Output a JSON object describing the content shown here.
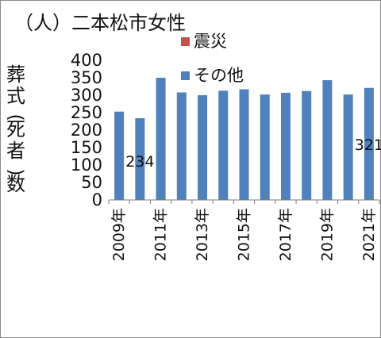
{
  "chart_data": {
    "type": "bar",
    "title": "（人）二本松市女性",
    "ylabel": "葬式(死者)数",
    "xlabel": "",
    "ylim": [
      0,
      400
    ],
    "yticks": [
      0,
      50,
      100,
      150,
      200,
      250,
      300,
      350,
      400
    ],
    "categories": [
      "2009年",
      "2010年",
      "2011年",
      "2012年",
      "2013年",
      "2014年",
      "2015年",
      "2016年",
      "2017年",
      "2018年",
      "2019年",
      "2020年",
      "2021年"
    ],
    "tick_labels": [
      "2009年",
      "2011年",
      "2013年",
      "2015年",
      "2017年",
      "2019年",
      "2021年"
    ],
    "series": [
      {
        "name": "震災",
        "color": "#c0504d",
        "values": [
          0,
          0,
          0,
          0,
          0,
          0,
          0,
          0,
          0,
          0,
          0,
          0,
          0
        ]
      },
      {
        "name": "その他",
        "color": "#4f81bd",
        "values": [
          253,
          234,
          350,
          308,
          300,
          313,
          317,
          302,
          307,
          312,
          343,
          302,
          321
        ]
      }
    ],
    "data_labels": [
      {
        "category": "2010年",
        "text": "234"
      },
      {
        "category": "2021年",
        "text": "321"
      }
    ],
    "legend_position": "top-right",
    "grid": false
  }
}
